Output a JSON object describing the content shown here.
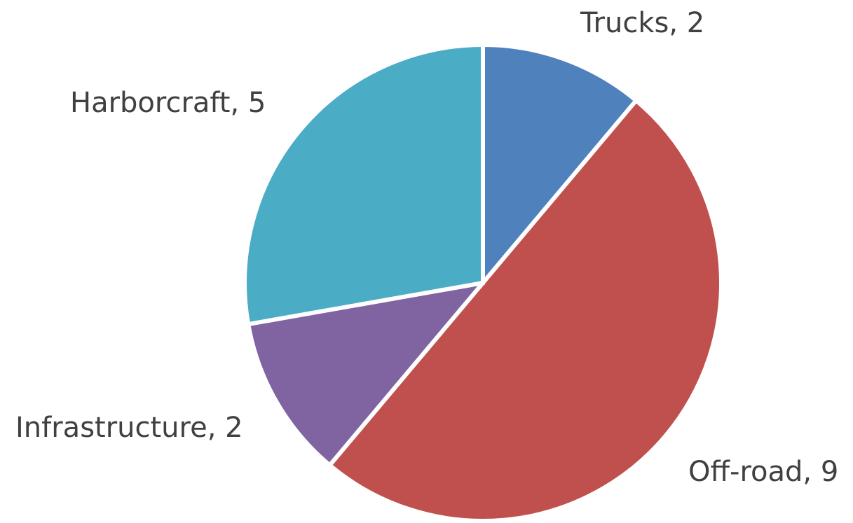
{
  "chart_data": {
    "type": "pie",
    "title": "",
    "categories": [
      "Trucks",
      "Off-road",
      "Infrastructure",
      "Harborcraft"
    ],
    "values": [
      2,
      9,
      2,
      5
    ],
    "colors": [
      "#4F81BD",
      "#C0504D",
      "#8064A2",
      "#4BACC6"
    ],
    "data_labels": [
      "Trucks, 2",
      "Off-road, 9",
      "Infrastructure, 2",
      "Harborcraft, 5"
    ],
    "start_angle": "12 o'clock",
    "direction": "clockwise",
    "legend": "none"
  }
}
